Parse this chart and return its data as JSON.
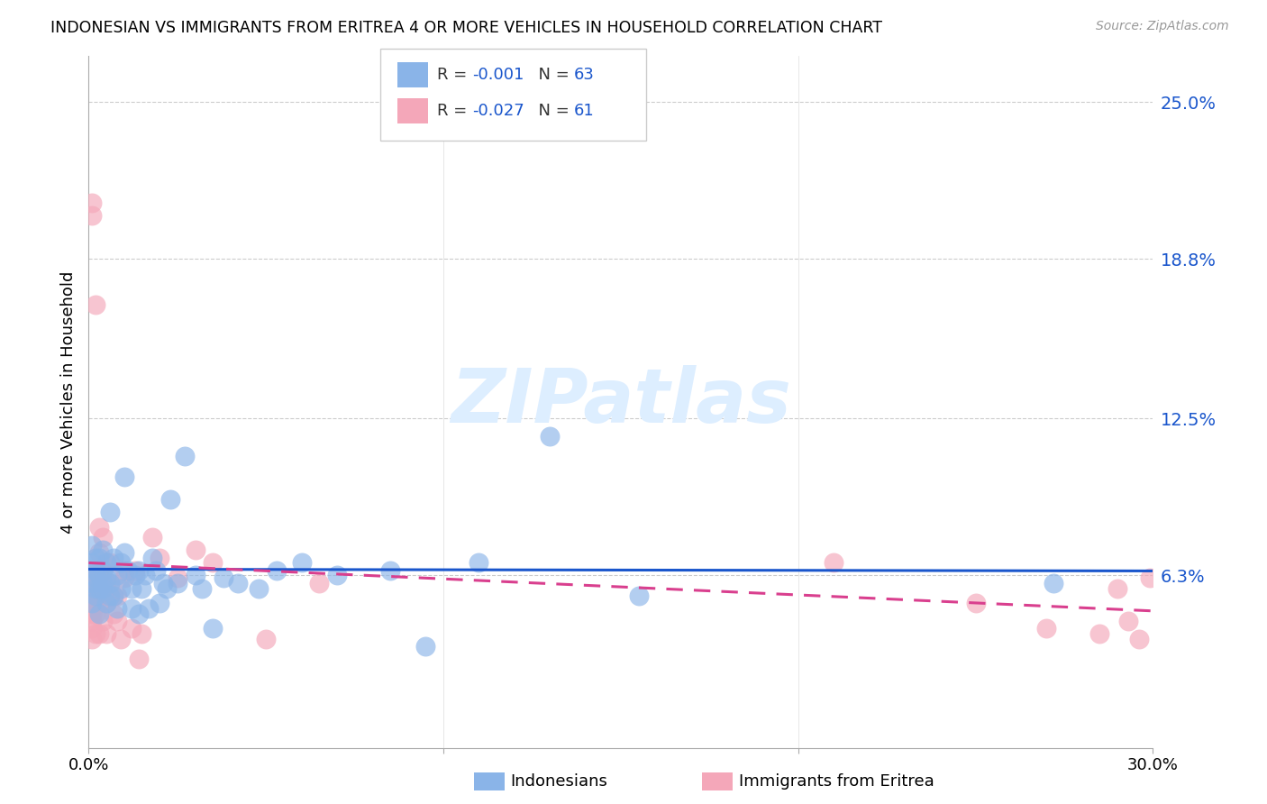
{
  "title": "INDONESIAN VS IMMIGRANTS FROM ERITREA 4 OR MORE VEHICLES IN HOUSEHOLD CORRELATION CHART",
  "source": "Source: ZipAtlas.com",
  "ylabel": "4 or more Vehicles in Household",
  "ytick_labels": [
    "6.3%",
    "12.5%",
    "18.8%",
    "25.0%"
  ],
  "ytick_values": [
    0.063,
    0.125,
    0.188,
    0.25
  ],
  "xlim": [
    0.0,
    0.3
  ],
  "ylim": [
    -0.005,
    0.268
  ],
  "legend_labels": [
    "Indonesians",
    "Immigrants from Eritrea"
  ],
  "legend_R": [
    "-0.001",
    "-0.027"
  ],
  "legend_N": [
    "63",
    "61"
  ],
  "blue_color": "#8ab4e8",
  "pink_color": "#f4a7b9",
  "blue_line_color": "#1a56cc",
  "pink_line_color": "#d93f8e",
  "watermark_color": "#ddeeff",
  "indonesian_x": [
    0.001,
    0.001,
    0.001,
    0.001,
    0.002,
    0.002,
    0.002,
    0.002,
    0.002,
    0.003,
    0.003,
    0.003,
    0.003,
    0.004,
    0.004,
    0.004,
    0.004,
    0.005,
    0.005,
    0.005,
    0.006,
    0.006,
    0.006,
    0.007,
    0.007,
    0.008,
    0.008,
    0.009,
    0.009,
    0.01,
    0.01,
    0.011,
    0.012,
    0.012,
    0.013,
    0.014,
    0.014,
    0.015,
    0.016,
    0.017,
    0.018,
    0.019,
    0.02,
    0.021,
    0.022,
    0.023,
    0.025,
    0.027,
    0.03,
    0.032,
    0.035,
    0.038,
    0.042,
    0.048,
    0.053,
    0.06,
    0.07,
    0.085,
    0.095,
    0.11,
    0.13,
    0.155,
    0.272
  ],
  "indonesian_y": [
    0.068,
    0.06,
    0.052,
    0.075,
    0.065,
    0.058,
    0.07,
    0.055,
    0.062,
    0.063,
    0.048,
    0.07,
    0.058,
    0.06,
    0.065,
    0.058,
    0.073,
    0.062,
    0.052,
    0.068,
    0.06,
    0.088,
    0.055,
    0.07,
    0.055,
    0.063,
    0.05,
    0.068,
    0.058,
    0.072,
    0.102,
    0.065,
    0.058,
    0.05,
    0.063,
    0.065,
    0.048,
    0.058,
    0.063,
    0.05,
    0.07,
    0.065,
    0.052,
    0.06,
    0.058,
    0.093,
    0.06,
    0.11,
    0.063,
    0.058,
    0.042,
    0.062,
    0.06,
    0.058,
    0.065,
    0.068,
    0.063,
    0.065,
    0.035,
    0.068,
    0.118,
    0.055,
    0.06
  ],
  "eritrea_x": [
    0.001,
    0.001,
    0.001,
    0.001,
    0.001,
    0.001,
    0.001,
    0.001,
    0.001,
    0.001,
    0.001,
    0.002,
    0.002,
    0.002,
    0.002,
    0.002,
    0.002,
    0.002,
    0.003,
    0.003,
    0.003,
    0.003,
    0.003,
    0.003,
    0.004,
    0.004,
    0.004,
    0.004,
    0.005,
    0.005,
    0.005,
    0.005,
    0.006,
    0.006,
    0.006,
    0.007,
    0.007,
    0.008,
    0.008,
    0.009,
    0.01,
    0.01,
    0.012,
    0.013,
    0.014,
    0.015,
    0.018,
    0.02,
    0.025,
    0.03,
    0.035,
    0.05,
    0.065,
    0.21,
    0.25,
    0.27,
    0.285,
    0.29,
    0.293,
    0.296,
    0.299
  ],
  "eritrea_y": [
    0.21,
    0.205,
    0.062,
    0.058,
    0.052,
    0.048,
    0.042,
    0.038,
    0.055,
    0.05,
    0.045,
    0.17,
    0.062,
    0.058,
    0.052,
    0.048,
    0.065,
    0.04,
    0.082,
    0.072,
    0.065,
    0.058,
    0.052,
    0.04,
    0.078,
    0.065,
    0.055,
    0.045,
    0.068,
    0.06,
    0.052,
    0.04,
    0.068,
    0.06,
    0.055,
    0.055,
    0.048,
    0.055,
    0.045,
    0.038,
    0.062,
    0.065,
    0.042,
    0.065,
    0.03,
    0.04,
    0.078,
    0.07,
    0.062,
    0.073,
    0.068,
    0.038,
    0.06,
    0.068,
    0.052,
    0.042,
    0.04,
    0.058,
    0.045,
    0.038,
    0.062
  ],
  "blue_trend_x": [
    0.0,
    0.3
  ],
  "blue_trend_y": [
    0.0655,
    0.0648
  ],
  "pink_trend_x": [
    0.0,
    0.3
  ],
  "pink_trend_y": [
    0.068,
    0.049
  ]
}
